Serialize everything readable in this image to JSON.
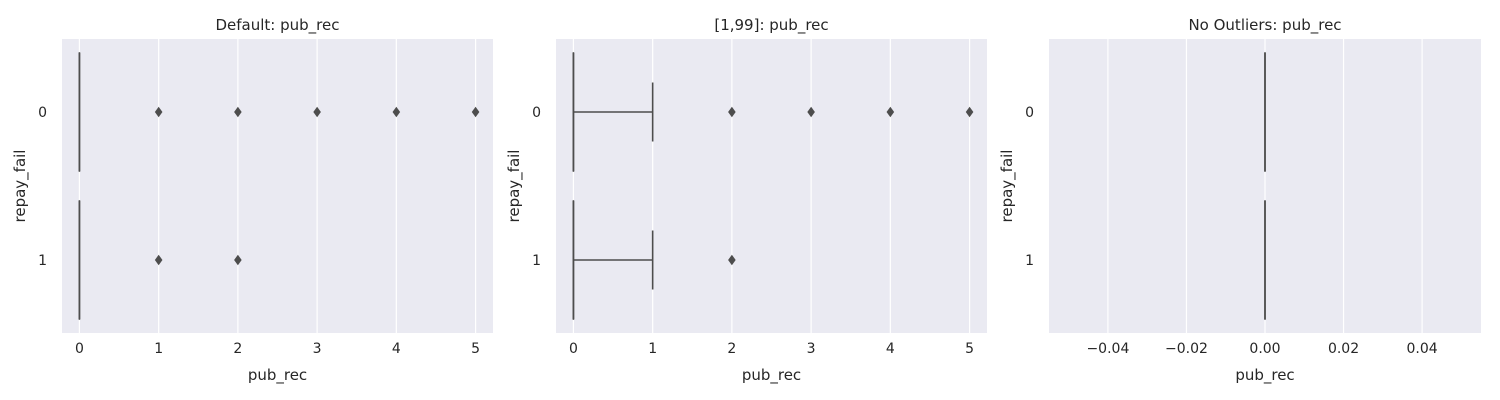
{
  "chart_data": [
    {
      "type": "boxplot",
      "orientation": "horizontal",
      "title": "Default: pub_rec",
      "xlabel": "pub_rec",
      "ylabel": "repay_fail",
      "xlim": [
        -0.22,
        5.22
      ],
      "xticks": [
        0,
        1,
        2,
        3,
        4,
        5
      ],
      "xtick_labels": [
        "0",
        "1",
        "2",
        "3",
        "4",
        "5"
      ],
      "categories": [
        "0",
        "1"
      ],
      "grid": true,
      "boxes": [
        {
          "category": "0",
          "q1": 0,
          "median": 0,
          "q3": 0,
          "whisker_low": 0,
          "whisker_high": 0,
          "outliers": [
            1,
            2,
            3,
            4,
            5
          ]
        },
        {
          "category": "1",
          "q1": 0,
          "median": 0,
          "q3": 0,
          "whisker_low": 0,
          "whisker_high": 0,
          "outliers": [
            1,
            2
          ]
        }
      ]
    },
    {
      "type": "boxplot",
      "orientation": "horizontal",
      "title": "[1,99]: pub_rec",
      "xlabel": "pub_rec",
      "ylabel": "repay_fail",
      "xlim": [
        -0.22,
        5.22
      ],
      "xticks": [
        0,
        1,
        2,
        3,
        4,
        5
      ],
      "xtick_labels": [
        "0",
        "1",
        "2",
        "3",
        "4",
        "5"
      ],
      "categories": [
        "0",
        "1"
      ],
      "grid": true,
      "boxes": [
        {
          "category": "0",
          "q1": 0,
          "median": 0,
          "q3": 0,
          "whisker_low": 0,
          "whisker_high": 1,
          "outliers": [
            2,
            3,
            4,
            5
          ]
        },
        {
          "category": "1",
          "q1": 0,
          "median": 0,
          "q3": 0,
          "whisker_low": 0,
          "whisker_high": 1,
          "outliers": [
            2
          ]
        }
      ]
    },
    {
      "type": "boxplot",
      "orientation": "horizontal",
      "title": "No Outliers: pub_rec",
      "xlabel": "pub_rec",
      "ylabel": "repay_fail",
      "xlim": [
        -0.055,
        0.055
      ],
      "xticks": [
        -0.04,
        -0.02,
        0,
        0.02,
        0.04
      ],
      "xtick_labels": [
        "−0.04",
        "−0.02",
        "0.00",
        "0.02",
        "0.04"
      ],
      "categories": [
        "0",
        "1"
      ],
      "grid": true,
      "boxes": [
        {
          "category": "0",
          "q1": 0,
          "median": 0,
          "q3": 0,
          "whisker_low": 0,
          "whisker_high": 0,
          "outliers": []
        },
        {
          "category": "1",
          "q1": 0,
          "median": 0,
          "q3": 0,
          "whisker_low": 0,
          "whisker_high": 0,
          "outliers": []
        }
      ]
    }
  ]
}
